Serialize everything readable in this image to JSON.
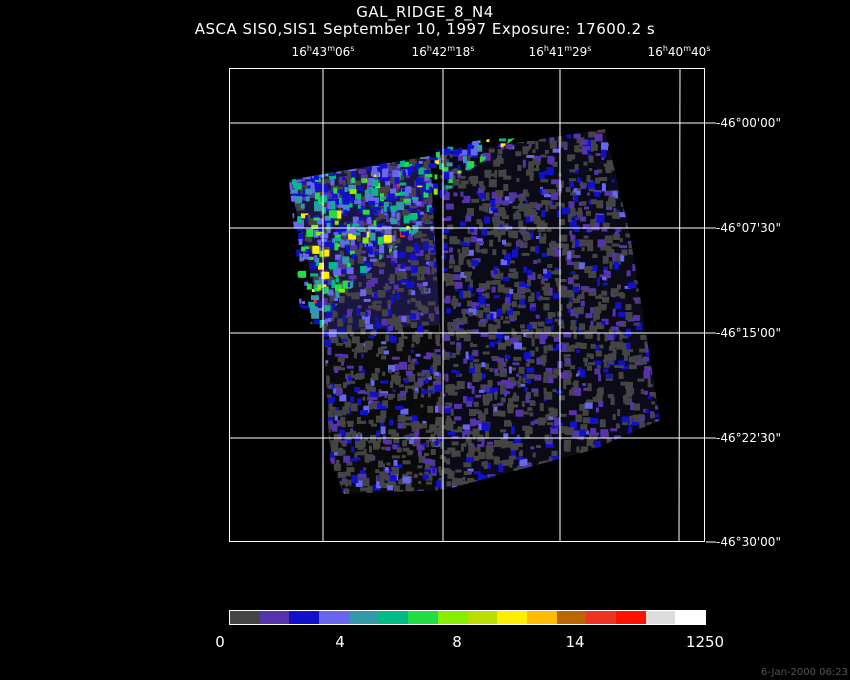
{
  "title": "GAL_RIDGE_8_N4",
  "subtitle": "ASCA SIS0,SIS1 September 10, 1997 Exposure: 17600.2 s",
  "ra_ticks": [
    {
      "h": "16",
      "m": "43",
      "s": "06"
    },
    {
      "h": "16",
      "m": "42",
      "s": "18"
    },
    {
      "h": "16",
      "m": "41",
      "s": "29"
    },
    {
      "h": "16",
      "m": "40",
      "s": "40"
    }
  ],
  "dec_ticks": [
    "-46°00'00\"",
    "-46°07'30\"",
    "-46°15'00\"",
    "-46°22'30\"",
    "-46°30'00\""
  ],
  "colorbar": {
    "colors": [
      "#444444",
      "#5533aa",
      "#1111cc",
      "#6666ee",
      "#3399aa",
      "#00bb88",
      "#22dd44",
      "#88ee00",
      "#bbdd00",
      "#ffee00",
      "#ffbb00",
      "#bb6600",
      "#ee3322",
      "#ff1100",
      "#dddddd",
      "#ffffff"
    ],
    "labels": [
      "0",
      "4",
      "8",
      "14",
      "1250"
    ]
  },
  "timestamp": "6-Jan-2000 06:23"
}
